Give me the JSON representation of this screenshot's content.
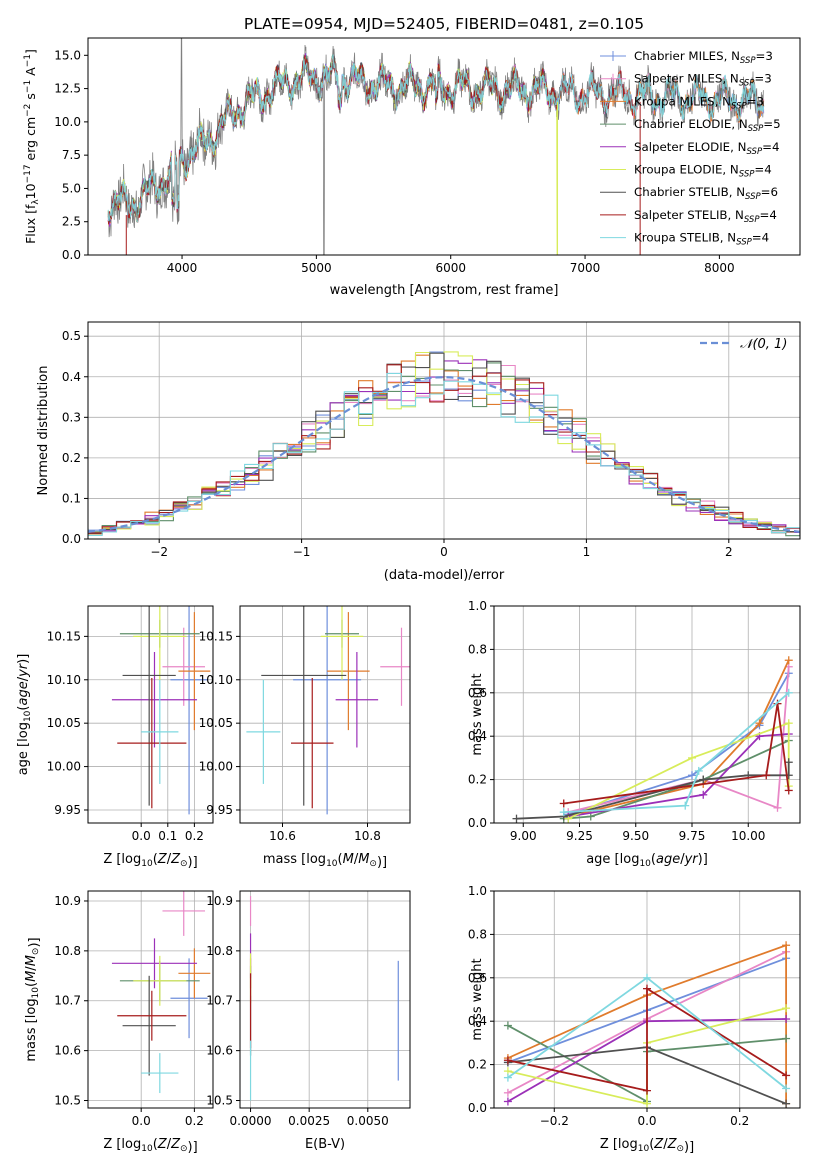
{
  "figure": {
    "title": "PLATE=0954, MJD=52405, FIBERID=0481, z=0.105"
  },
  "colors": {
    "Chabrier MILES": "#6f8fdc",
    "Salpeter MILES": "#e887c6",
    "Kroupa MILES": "#e07b2c",
    "Chabrier ELODIE": "#5f8f6a",
    "Salpeter ELODIE": "#9b30b8",
    "Kroupa ELODIE": "#d8ec5a",
    "Chabrier STELIB": "#505050",
    "Salpeter STELIB": "#a61c1c",
    "Kroupa STELIB": "#7fd8e0",
    "data": "#808080"
  },
  "legend_top": [
    {
      "key": "Chabrier MILES",
      "label": "Chabrier MILES, N",
      "sub": "SSP",
      "tail": "=3"
    },
    {
      "key": "Salpeter MILES",
      "label": "Salpeter MILES, N",
      "sub": "SSP",
      "tail": "=3"
    },
    {
      "key": "Kroupa MILES",
      "label": "Kroupa MILES, N",
      "sub": "SSP",
      "tail": "=3"
    },
    {
      "key": "Chabrier ELODIE",
      "label": "Chabrier ELODIE, N",
      "sub": "SSP",
      "tail": "=5"
    },
    {
      "key": "Salpeter ELODIE",
      "label": "Salpeter ELODIE, N",
      "sub": "SSP",
      "tail": "=4"
    },
    {
      "key": "Kroupa ELODIE",
      "label": "Kroupa ELODIE, N",
      "sub": "SSP",
      "tail": "=4"
    },
    {
      "key": "Chabrier STELIB",
      "label": "Chabrier STELIB, N",
      "sub": "SSP",
      "tail": "=6"
    },
    {
      "key": "Salpeter STELIB",
      "label": "Salpeter STELIB, N",
      "sub": "SSP",
      "tail": "=4"
    },
    {
      "key": "Kroupa STELIB",
      "label": "Kroupa STELIB, N",
      "sub": "SSP",
      "tail": "=4"
    }
  ],
  "legend_hist": {
    "label": "𝒩(0, 1)"
  },
  "chart_data": [
    {
      "id": "spectrum",
      "type": "line",
      "xlabel": "wavelength [Angstrom, rest frame]",
      "ylabel": "Flux [f",
      "xlim": [
        3300,
        8600
      ],
      "ylim": [
        0,
        16.3
      ],
      "xticks": [
        4000,
        5000,
        6000,
        7000,
        8000
      ],
      "yticks": [
        0.0,
        2.5,
        5.0,
        7.5,
        10.0,
        12.5,
        15.0
      ],
      "continuum_anchors": [
        [
          3450,
          4.0
        ],
        [
          3600,
          3.8
        ],
        [
          3700,
          4.3
        ],
        [
          3800,
          5.2
        ],
        [
          3900,
          6.0
        ],
        [
          4000,
          7.2
        ],
        [
          4150,
          8.2
        ],
        [
          4300,
          9.8
        ],
        [
          4450,
          11.3
        ],
        [
          4600,
          12.1
        ],
        [
          4800,
          13.1
        ],
        [
          5000,
          13.4
        ],
        [
          5200,
          13.3
        ],
        [
          5500,
          12.7
        ],
        [
          5800,
          12.7
        ],
        [
          6000,
          12.6
        ],
        [
          6300,
          12.5
        ],
        [
          6600,
          12.4
        ],
        [
          6900,
          12.2
        ],
        [
          7200,
          12.1
        ],
        [
          7500,
          11.9
        ],
        [
          7800,
          11.8
        ],
        [
          8100,
          11.7
        ],
        [
          8330,
          11.5
        ]
      ],
      "x_range": [
        3450,
        8330
      ]
    },
    {
      "id": "residual_hist",
      "type": "bar",
      "xlabel": "(data-model)/error",
      "ylabel": "Normed distribution",
      "xlim": [
        -2.5,
        2.5
      ],
      "ylim": [
        0,
        0.535
      ],
      "xticks": [
        -2,
        -1,
        0,
        1,
        2
      ],
      "yticks": [
        0.0,
        0.1,
        0.2,
        0.3,
        0.4,
        0.5
      ],
      "bin_width": 0.1,
      "model": "normal(0,1) dashed"
    },
    {
      "id": "age_vs_Z",
      "type": "scatter",
      "xlabel": "Z [log",
      "ylabel": "age  [log",
      "xlim": [
        -0.2,
        0.27
      ],
      "ylim": [
        9.935,
        10.185
      ],
      "xticks": [
        0.0,
        0.1,
        0.2
      ],
      "yticks": [
        9.95,
        10.0,
        10.05,
        10.1,
        10.15
      ],
      "points": [
        {
          "key": "Chabrier MILES",
          "x": 0.18,
          "xerr": 0.07,
          "y": 10.1,
          "yerr": 0.155
        },
        {
          "key": "Salpeter MILES",
          "x": 0.16,
          "xerr": 0.08,
          "y": 10.115,
          "yerr": 0.045
        },
        {
          "key": "Kroupa MILES",
          "x": 0.2,
          "xerr": 0.06,
          "y": 10.11,
          "yerr": 0.068
        },
        {
          "key": "Chabrier ELODIE",
          "x": 0.07,
          "xerr": 0.15,
          "y": 10.153,
          "yerr": 0.016
        },
        {
          "key": "Salpeter ELODIE",
          "x": 0.05,
          "xerr": 0.16,
          "y": 10.077,
          "yerr": 0.055
        },
        {
          "key": "Kroupa ELODIE",
          "x": 0.07,
          "xerr": 0.1,
          "y": 10.15,
          "yerr": 0.05
        },
        {
          "key": "Chabrier STELIB",
          "x": 0.03,
          "xerr": 0.1,
          "y": 10.105,
          "yerr": 0.15
        },
        {
          "key": "Salpeter STELIB",
          "x": 0.04,
          "xerr": 0.13,
          "y": 10.027,
          "yerr": 0.075
        },
        {
          "key": "Kroupa STELIB",
          "x": 0.07,
          "xerr": 0.07,
          "y": 10.04,
          "yerr": 0.06
        }
      ]
    },
    {
      "id": "age_vs_mass",
      "type": "scatter",
      "xlabel": "mass [log",
      "ylabel": "",
      "xlim": [
        10.5,
        10.9
      ],
      "ylim": [
        9.935,
        10.185
      ],
      "xticks": [
        10.6,
        10.8
      ],
      "yticks": [
        9.95,
        10.0,
        10.05,
        10.1,
        10.15
      ],
      "points": [
        {
          "key": "Chabrier MILES",
          "x": 10.705,
          "xerr": 0.08,
          "y": 10.1,
          "yerr": 0.155
        },
        {
          "key": "Salpeter MILES",
          "x": 10.88,
          "xerr": 0.05,
          "y": 10.115,
          "yerr": 0.045
        },
        {
          "key": "Kroupa MILES",
          "x": 10.755,
          "xerr": 0.05,
          "y": 10.11,
          "yerr": 0.068
        },
        {
          "key": "Chabrier ELODIE",
          "x": 10.74,
          "xerr": 0.04,
          "y": 10.153,
          "yerr": 0.016
        },
        {
          "key": "Salpeter ELODIE",
          "x": 10.775,
          "xerr": 0.05,
          "y": 10.077,
          "yerr": 0.055
        },
        {
          "key": "Kroupa ELODIE",
          "x": 10.74,
          "xerr": 0.05,
          "y": 10.15,
          "yerr": 0.05
        },
        {
          "key": "Chabrier STELIB",
          "x": 10.65,
          "xerr": 0.1,
          "y": 10.105,
          "yerr": 0.15
        },
        {
          "key": "Salpeter STELIB",
          "x": 10.67,
          "xerr": 0.05,
          "y": 10.027,
          "yerr": 0.075
        },
        {
          "key": "Kroupa STELIB",
          "x": 10.555,
          "xerr": 0.04,
          "y": 10.04,
          "yerr": 0.06
        }
      ]
    },
    {
      "id": "weight_vs_age",
      "type": "line",
      "xlabel": "age  [log",
      "ylabel": "mass weight",
      "xlim": [
        8.87,
        10.23
      ],
      "ylim": [
        0,
        1.0
      ],
      "xticks": [
        9.0,
        9.25,
        9.5,
        9.75,
        10.0
      ],
      "yticks": [
        0.0,
        0.2,
        0.4,
        0.6,
        0.8,
        1.0
      ],
      "series": [
        {
          "key": "Chabrier MILES",
          "x": [
            9.2,
            9.75,
            10.05,
            10.18
          ],
          "y": [
            0.04,
            0.22,
            0.45,
            0.69
          ]
        },
        {
          "key": "Salpeter MILES",
          "x": [
            9.2,
            9.8,
            10.13,
            10.18
          ],
          "y": [
            0.05,
            0.2,
            0.07,
            0.72
          ]
        },
        {
          "key": "Kroupa MILES",
          "x": [
            9.2,
            9.8,
            10.05,
            10.18
          ],
          "y": [
            0.03,
            0.18,
            0.46,
            0.75
          ]
        },
        {
          "key": "Chabrier ELODIE",
          "x": [
            9.18,
            9.3,
            9.8,
            10.18
          ],
          "y": [
            0.02,
            0.03,
            0.2,
            0.38
          ]
        },
        {
          "key": "Salpeter ELODIE",
          "x": [
            9.2,
            9.8,
            10.05,
            10.18
          ],
          "y": [
            0.03,
            0.13,
            0.4,
            0.41
          ]
        },
        {
          "key": "Kroupa ELODIE",
          "x": [
            9.2,
            9.75,
            10.18,
            10.18
          ],
          "y": [
            0.02,
            0.3,
            0.46,
            0.17
          ]
        },
        {
          "key": "Chabrier STELIB",
          "x": [
            8.97,
            9.18,
            9.8,
            10.0,
            10.18,
            10.18
          ],
          "y": [
            0.02,
            0.03,
            0.2,
            0.22,
            0.22,
            0.28
          ]
        },
        {
          "key": "Salpeter STELIB",
          "x": [
            9.18,
            10.08,
            10.13,
            10.18
          ],
          "y": [
            0.09,
            0.22,
            0.55,
            0.15
          ]
        },
        {
          "key": "Kroupa STELIB",
          "x": [
            9.18,
            9.72,
            9.78,
            10.18
          ],
          "y": [
            0.05,
            0.08,
            0.24,
            0.6
          ]
        }
      ]
    },
    {
      "id": "mass_vs_Z",
      "type": "scatter",
      "xlabel": "Z [log",
      "ylabel": "mass [log",
      "xlim": [
        -0.2,
        0.27
      ],
      "ylim": [
        10.485,
        10.92
      ],
      "xticks": [
        0.0,
        0.2
      ],
      "yticks": [
        10.5,
        10.6,
        10.7,
        10.8,
        10.9
      ],
      "points": [
        {
          "key": "Chabrier MILES",
          "x": 0.18,
          "xerr": 0.07,
          "y": 10.705,
          "yerr": 0.08
        },
        {
          "key": "Salpeter MILES",
          "x": 0.16,
          "xerr": 0.08,
          "y": 10.88,
          "yerr": 0.05
        },
        {
          "key": "Kroupa MILES",
          "x": 0.2,
          "xerr": 0.06,
          "y": 10.755,
          "yerr": 0.05
        },
        {
          "key": "Chabrier ELODIE",
          "x": 0.07,
          "xerr": 0.15,
          "y": 10.74,
          "yerr": 0.04
        },
        {
          "key": "Salpeter ELODIE",
          "x": 0.05,
          "xerr": 0.16,
          "y": 10.775,
          "yerr": 0.05
        },
        {
          "key": "Kroupa ELODIE",
          "x": 0.07,
          "xerr": 0.1,
          "y": 10.74,
          "yerr": 0.05
        },
        {
          "key": "Chabrier STELIB",
          "x": 0.03,
          "xerr": 0.1,
          "y": 10.65,
          "yerr": 0.1
        },
        {
          "key": "Salpeter STELIB",
          "x": 0.04,
          "xerr": 0.13,
          "y": 10.67,
          "yerr": 0.05
        },
        {
          "key": "Kroupa STELIB",
          "x": 0.07,
          "xerr": 0.07,
          "y": 10.555,
          "yerr": 0.04
        }
      ]
    },
    {
      "id": "mass_vs_ebv",
      "type": "scatter",
      "xlabel": "E(B-V)",
      "ylabel": "",
      "xlim": [
        -0.00045,
        0.0068
      ],
      "ylim": [
        10.485,
        10.92
      ],
      "xticks": [
        0.0,
        0.0025,
        0.005
      ],
      "xtick_labels": [
        "0.0000",
        "0.0025",
        "0.0050"
      ],
      "yticks": [
        10.5,
        10.6,
        10.7,
        10.8,
        10.9
      ],
      "points": [
        {
          "key": "Chabrier MILES",
          "x": 0.0063,
          "xerr": 0.0,
          "y": 10.66,
          "yerr": 0.12
        },
        {
          "key": "Salpeter MILES",
          "x": 0.0,
          "xerr": 0.0,
          "y": 10.88,
          "yerr": 0.03
        },
        {
          "key": "Kroupa MILES",
          "x": 0.0,
          "xerr": 0.0,
          "y": 10.755,
          "yerr": 0.03
        },
        {
          "key": "Chabrier ELODIE",
          "x": 0.0,
          "xerr": 0.0,
          "y": 10.74,
          "yerr": 0.03
        },
        {
          "key": "Salpeter ELODIE",
          "x": 0.0,
          "xerr": 0.0,
          "y": 10.79,
          "yerr": 0.045
        },
        {
          "key": "Kroupa ELODIE",
          "x": 0.0,
          "xerr": 0.0,
          "y": 10.745,
          "yerr": 0.05
        },
        {
          "key": "Chabrier STELIB",
          "x": 0.0,
          "xerr": 0.0,
          "y": 10.65,
          "yerr": 0.06
        },
        {
          "key": "Salpeter STELIB",
          "x": 0.0,
          "xerr": 0.0,
          "y": 10.68,
          "yerr": 0.075
        },
        {
          "key": "Kroupa STELIB",
          "x": 0.0,
          "xerr": 0.0,
          "y": 10.56,
          "yerr": 0.06
        }
      ]
    },
    {
      "id": "weight_vs_Z",
      "type": "line",
      "xlabel": "Z [log",
      "ylabel": "mass weight",
      "xlim": [
        -0.33,
        0.33
      ],
      "ylim": [
        0,
        1.0
      ],
      "xticks": [
        -0.2,
        0.0,
        0.2
      ],
      "xtick_labels": [
        "−0.2",
        "0.0",
        "0.2"
      ],
      "yticks": [
        0.0,
        0.2,
        0.4,
        0.6,
        0.8,
        1.0
      ],
      "series": [
        {
          "key": "Chabrier MILES",
          "x": [
            -0.3,
            0.0,
            0.3
          ],
          "y": [
            0.21,
            0.45,
            0.69
          ]
        },
        {
          "key": "Salpeter MILES",
          "x": [
            -0.3,
            0.0,
            0.3
          ],
          "y": [
            0.07,
            0.41,
            0.72
          ]
        },
        {
          "key": "Kroupa MILES",
          "x": [
            -0.3,
            0.0,
            0.3,
            0.3
          ],
          "y": [
            0.23,
            0.52,
            0.75,
            0.02
          ]
        },
        {
          "key": "Chabrier ELODIE",
          "x": [
            -0.3,
            0.0,
            0.0,
            0.3
          ],
          "y": [
            0.38,
            0.03,
            0.26,
            0.32
          ]
        },
        {
          "key": "Salpeter ELODIE",
          "x": [
            -0.3,
            0.0,
            0.3
          ],
          "y": [
            0.03,
            0.4,
            0.41
          ]
        },
        {
          "key": "Kroupa ELODIE",
          "x": [
            -0.3,
            0.0,
            0.0,
            0.3
          ],
          "y": [
            0.17,
            0.02,
            0.3,
            0.46
          ]
        },
        {
          "key": "Chabrier STELIB",
          "x": [
            -0.3,
            0.0,
            0.3
          ],
          "y": [
            0.21,
            0.28,
            0.02
          ]
        },
        {
          "key": "Salpeter STELIB",
          "x": [
            -0.3,
            0.0,
            0.0,
            0.3
          ],
          "y": [
            0.22,
            0.08,
            0.55,
            0.15
          ]
        },
        {
          "key": "Kroupa STELIB",
          "x": [
            -0.3,
            0.0,
            0.3
          ],
          "y": [
            0.14,
            0.6,
            0.09
          ]
        }
      ]
    }
  ]
}
